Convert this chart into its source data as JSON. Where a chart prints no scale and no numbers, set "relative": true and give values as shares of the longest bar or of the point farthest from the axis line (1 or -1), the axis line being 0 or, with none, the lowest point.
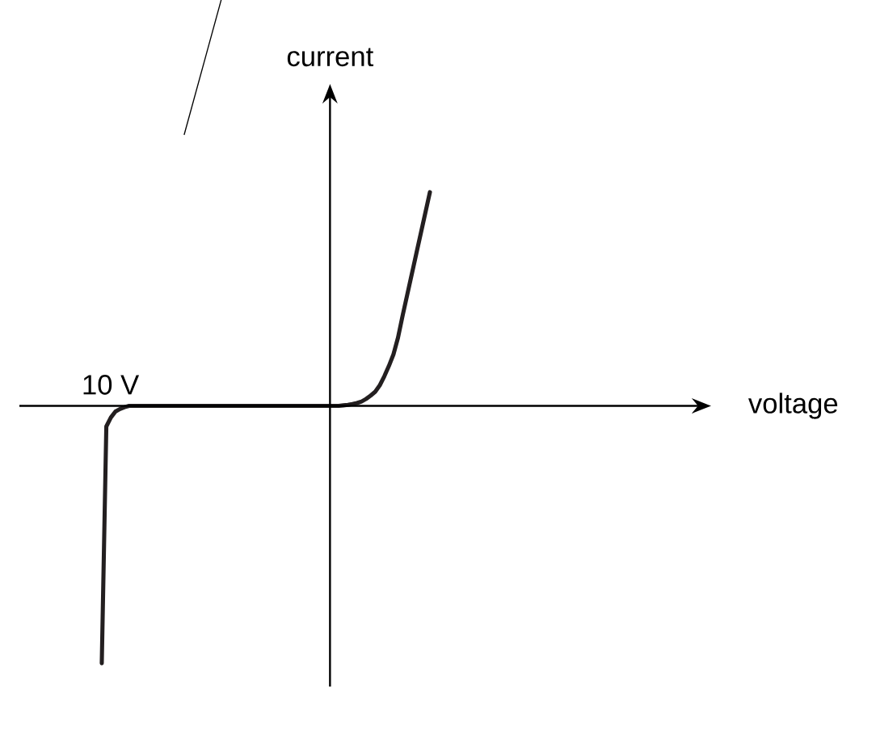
{
  "chart_data": {
    "type": "line",
    "ylabel": "current",
    "relative": true,
    "annotations": [
      "10 V",
      "voltage"
    ],
    "categories": [
      null,
      null,
      null,
      null,
      null,
      null,
      null,
      null,
      null,
      null,
      null,
      null,
      null,
      null,
      null,
      null,
      null,
      null,
      null,
      null,
      null,
      null,
      null,
      null,
      null,
      null,
      null,
      null,
      null,
      null,
      null,
      null,
      null,
      null,
      null,
      null,
      null,
      null,
      null,
      null,
      null,
      null,
      null,
      null,
      null,
      null,
      null,
      null,
      null,
      null,
      null,
      null,
      null,
      null,
      null,
      null,
      null,
      null,
      null,
      null,
      null,
      null,
      null,
      null,
      null,
      null,
      null,
      null,
      null,
      null,
      null,
      null,
      null
    ],
    "series": [
      {
        "color": "#231f20",
        "values": [
          -1.0,
          -0.08,
          -0.045,
          -0.022,
          -0.012,
          -0.005,
          0,
          0,
          0,
          0,
          0,
          0,
          0,
          0,
          0,
          0,
          0,
          0,
          0,
          0,
          0,
          0,
          0,
          0,
          0,
          0,
          0,
          0,
          0,
          0,
          0,
          0,
          0,
          0,
          0,
          0,
          0,
          0,
          0,
          0,
          0,
          0,
          0,
          0,
          0,
          0,
          0,
          0,
          0,
          0,
          0,
          0,
          0,
          0.002,
          0.004,
          0.007,
          0.011,
          0.017,
          0.027,
          0.04,
          0.055,
          0.08,
          0.115,
          0.155,
          0.2,
          0.265,
          0.35,
          0.43,
          0.51,
          0.59,
          0.67,
          0.75,
          0.83
        ]
      }
    ]
  }
}
